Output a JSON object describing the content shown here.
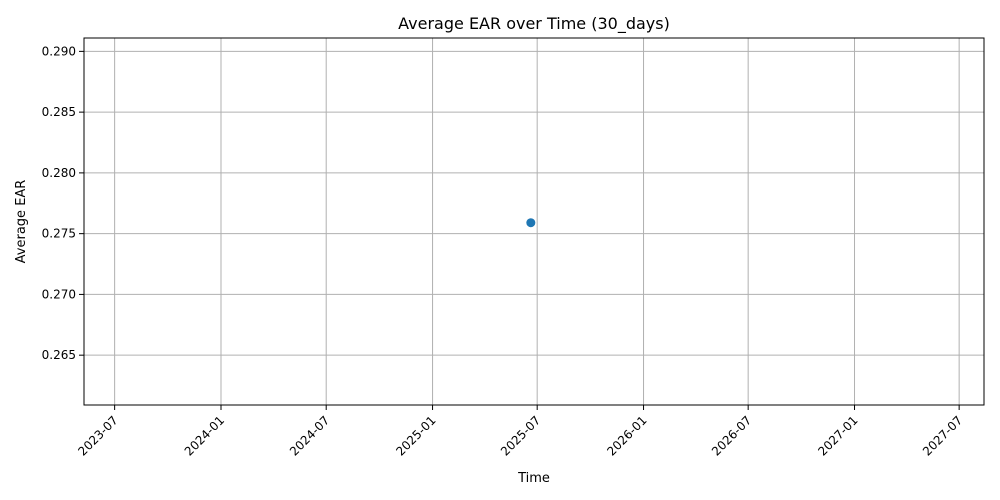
{
  "chart_data": {
    "type": "scatter",
    "title": "Average EAR over Time (30_days)",
    "xlabel": "Time",
    "ylabel": "Average EAR",
    "x_type": "date",
    "xlim": [
      "2023-05-09",
      "2027-08-13"
    ],
    "ylim": [
      0.2609,
      0.2911
    ],
    "x_ticks": [
      "2023-07-01",
      "2024-01-01",
      "2024-07-01",
      "2025-01-01",
      "2025-07-01",
      "2026-01-01",
      "2026-07-01",
      "2027-01-01",
      "2027-07-01"
    ],
    "x_tick_labels": [
      "2023-07",
      "2024-01",
      "2024-07",
      "2025-01",
      "2025-07",
      "2026-01",
      "2026-07",
      "2027-01",
      "2027-07"
    ],
    "y_ticks": [
      0.265,
      0.27,
      0.275,
      0.28,
      0.285,
      0.29
    ],
    "y_tick_labels": [
      "0.265",
      "0.270",
      "0.275",
      "0.280",
      "0.285",
      "0.290"
    ],
    "grid": true,
    "x_tick_rotation": 45,
    "series": [
      {
        "color": "#1f77b4",
        "points": [
          {
            "x": "2025-06-20",
            "y": 0.2759
          }
        ]
      }
    ]
  }
}
